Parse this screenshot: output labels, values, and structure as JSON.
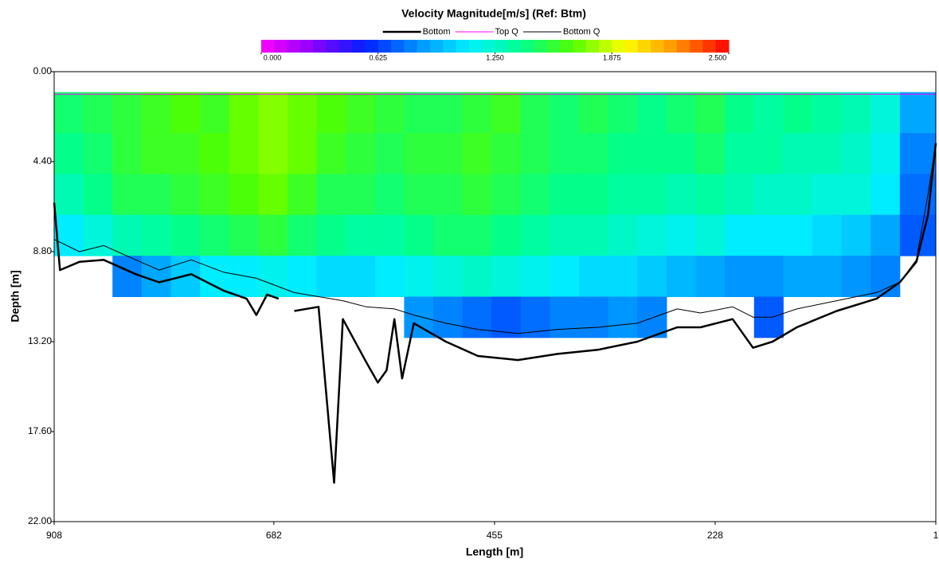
{
  "chart_data": {
    "type": "heatmap",
    "title": "Velocity Magnitude[m/s] (Ref: Btm)",
    "x_label": "Length [m]",
    "y_label": "Depth [m]",
    "xlim": [
      908,
      1
    ],
    "xticks": [
      908,
      682,
      455,
      228,
      1
    ],
    "ylim": [
      0,
      22
    ],
    "yticks": [
      {
        "value": 0,
        "label": "0.00"
      },
      {
        "value": 4.4,
        "label": "4.40"
      },
      {
        "value": 8.8,
        "label": "8.80"
      },
      {
        "value": 13.2,
        "label": "13.20"
      },
      {
        "value": 17.6,
        "label": "17.60"
      },
      {
        "value": 22,
        "label": "22.00"
      }
    ],
    "legend": "top",
    "colorbar": {
      "lim": [
        0,
        2.5
      ],
      "ticks": [
        {
          "value": 0,
          "label": "0.000"
        },
        {
          "value": 0.625,
          "label": "0.625"
        },
        {
          "value": 1.25,
          "label": "1.250"
        },
        {
          "value": 1.875,
          "label": "1.875"
        },
        {
          "value": 2.5,
          "label": "2.500"
        }
      ],
      "colors": [
        "#ff00ff",
        "#8a00ff",
        "#0020ff",
        "#0090ff",
        "#00f0ff",
        "#00ff90",
        "#50ff00",
        "#ffff00",
        "#ff9000",
        "#ff0000"
      ]
    },
    "heatmap": {
      "x_edges": [
        908,
        878,
        848,
        818,
        788,
        758,
        728,
        698,
        668,
        638,
        608,
        578,
        548,
        518,
        488,
        458,
        428,
        398,
        368,
        338,
        308,
        278,
        248,
        218,
        188,
        158,
        128,
        98,
        68,
        38,
        1
      ],
      "depth_edges": [
        1,
        3,
        5,
        7,
        9,
        11,
        13
      ],
      "values": [
        [
          1.45,
          1.5,
          1.55,
          1.6,
          1.65,
          1.6,
          1.7,
          1.75,
          1.7,
          1.65,
          1.6,
          1.55,
          1.5,
          1.5,
          1.55,
          1.6,
          1.5,
          1.45,
          1.5,
          1.45,
          1.4,
          1.45,
          1.5,
          1.4,
          1.35,
          1.4,
          1.35,
          1.3,
          1.2,
          0.9
        ],
        [
          1.4,
          1.45,
          1.55,
          1.6,
          1.6,
          1.65,
          1.7,
          1.75,
          1.7,
          1.6,
          1.55,
          1.5,
          1.55,
          1.55,
          1.6,
          1.55,
          1.5,
          1.45,
          1.45,
          1.4,
          1.4,
          1.4,
          1.45,
          1.35,
          1.35,
          1.3,
          1.3,
          1.25,
          1.15,
          0.8
        ],
        [
          1.3,
          1.4,
          1.5,
          1.5,
          1.55,
          1.6,
          1.65,
          1.7,
          1.6,
          1.5,
          1.5,
          1.45,
          1.5,
          1.5,
          1.55,
          1.5,
          1.45,
          1.4,
          1.4,
          1.35,
          1.35,
          1.3,
          1.35,
          1.3,
          1.25,
          1.25,
          1.2,
          1.2,
          1.1,
          0.75
        ],
        [
          1.1,
          1.2,
          1.3,
          1.35,
          1.4,
          1.45,
          1.5,
          1.55,
          1.45,
          1.4,
          1.35,
          1.35,
          1.4,
          1.45,
          1.45,
          1.4,
          1.35,
          1.3,
          1.3,
          1.25,
          1.2,
          1.15,
          1.2,
          1.1,
          1.1,
          1.1,
          1.05,
          1.0,
          0.9,
          0.7
        ],
        [
          null,
          null,
          0.8,
          0.9,
          1.0,
          1.1,
          1.1,
          1.15,
          1.1,
          1.05,
          1.05,
          1.1,
          1.15,
          1.2,
          1.25,
          1.2,
          1.15,
          1.1,
          1.05,
          1.05,
          1.0,
          0.95,
          0.9,
          0.85,
          0.85,
          0.9,
          0.9,
          0.85,
          0.8,
          null
        ],
        [
          null,
          null,
          null,
          null,
          null,
          null,
          null,
          null,
          null,
          null,
          null,
          null,
          0.85,
          0.8,
          0.75,
          0.7,
          0.75,
          0.8,
          0.8,
          0.85,
          0.8,
          null,
          null,
          null,
          0.7,
          null,
          null,
          null,
          null,
          null
        ]
      ]
    },
    "series": [
      {
        "name": "Bottom",
        "color": "#000000",
        "width": 2.5,
        "x": [
          908,
          902,
          882,
          857,
          824,
          800,
          767,
          734,
          710,
          700,
          689,
          677,
          669,
          661,
          636,
          620,
          611,
          587,
          575,
          566,
          558,
          550,
          538,
          505,
          472,
          431,
          390,
          349,
          308,
          267,
          243,
          210,
          189,
          169,
          144,
          103,
          62,
          38,
          21,
          9,
          1
        ],
        "values": [
          6.4,
          9.7,
          9.3,
          9.2,
          9.9,
          10.3,
          9.9,
          10.7,
          11.1,
          11.9,
          10.9,
          11.1,
          null,
          11.7,
          11.5,
          20.1,
          12.1,
          14.2,
          15.2,
          14.6,
          12.1,
          15.0,
          12.3,
          13.2,
          13.9,
          14.1,
          13.8,
          13.6,
          13.2,
          12.5,
          12.5,
          12.1,
          13.5,
          13.2,
          12.5,
          11.7,
          11.1,
          10.3,
          9.3,
          7.0,
          3.5
        ]
      },
      {
        "name": "Top Q",
        "color": "#ff00ff",
        "width": 1,
        "x": [
          908,
          1
        ],
        "values": [
          1.1,
          1.1
        ]
      },
      {
        "name": "Bottom Q",
        "color": "#000000",
        "width": 1,
        "x": [
          908,
          882,
          857,
          824,
          800,
          767,
          734,
          700,
          661,
          636,
          611,
          587,
          558,
          538,
          505,
          472,
          431,
          390,
          349,
          308,
          267,
          243,
          210,
          189,
          169,
          144,
          103,
          62,
          38,
          21,
          9,
          1
        ],
        "values": [
          8.2,
          8.8,
          8.5,
          9.2,
          9.7,
          9.2,
          9.8,
          10.1,
          10.8,
          11.0,
          11.2,
          11.5,
          11.6,
          11.9,
          12.3,
          12.6,
          12.8,
          12.6,
          12.5,
          12.3,
          11.6,
          11.8,
          11.5,
          12.0,
          12.0,
          11.6,
          11.2,
          10.8,
          10.3,
          9.2,
          6.0,
          3.5
        ]
      }
    ]
  }
}
